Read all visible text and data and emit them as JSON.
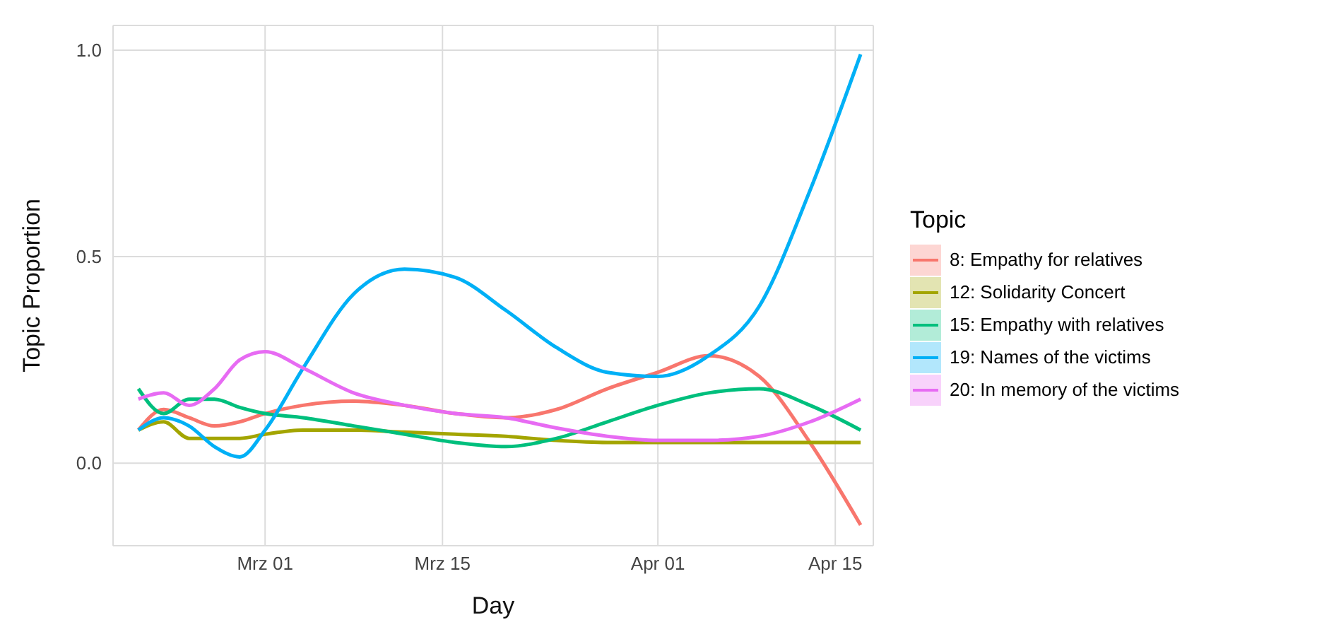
{
  "chart_data": {
    "type": "line",
    "xlabel": "Day",
    "ylabel": "Topic Proportion",
    "legend_title": "Topic",
    "legend": "right",
    "grid": true,
    "x": [
      "--02-19",
      "--02-21",
      "--02-23",
      "--02-25",
      "--02-27",
      "--03-01",
      "--03-04",
      "--03-08",
      "--03-12",
      "--03-16",
      "--03-20",
      "--03-24",
      "--03-28",
      "--04-01",
      "--04-05",
      "--04-09",
      "--04-13",
      "--04-17"
    ],
    "xlim": [
      "--02-17",
      "--04-18"
    ],
    "xticks": [
      {
        "value": "--03-01",
        "label": "Mrz 01"
      },
      {
        "value": "--03-15",
        "label": "Mrz 15"
      },
      {
        "value": "--04-01",
        "label": "Apr 01"
      },
      {
        "value": "--04-15",
        "label": "Apr 15"
      }
    ],
    "ylim": [
      -0.2,
      1.06
    ],
    "yticks": [
      {
        "value": 0,
        "label": "0.0"
      },
      0.5,
      {
        "value": 1,
        "label": "1.0"
      }
    ],
    "series": [
      {
        "name": "8: Empathy for relatives",
        "color": "#f8766d",
        "values": [
          0.08,
          0.13,
          0.11,
          0.09,
          0.1,
          0.12,
          0.14,
          0.15,
          0.14,
          0.12,
          0.11,
          0.13,
          0.18,
          0.22,
          0.26,
          0.21,
          0.05,
          -0.15
        ]
      },
      {
        "name": "12: Solidarity Concert",
        "color": "#a3a500",
        "values": [
          0.08,
          0.1,
          0.06,
          0.06,
          0.06,
          0.07,
          0.08,
          0.08,
          0.075,
          0.07,
          0.065,
          0.055,
          0.05,
          0.05,
          0.05,
          0.05,
          0.05,
          0.05
        ]
      },
      {
        "name": "15: Empathy with relatives",
        "color": "#00bf7d",
        "values": [
          0.18,
          0.12,
          0.155,
          0.155,
          0.135,
          0.12,
          0.11,
          0.09,
          0.07,
          0.05,
          0.04,
          0.06,
          0.1,
          0.14,
          0.17,
          0.18,
          0.14,
          0.08
        ]
      },
      {
        "name": "19: Names of the victims",
        "color": "#00b0f6",
        "values": [
          0.08,
          0.11,
          0.09,
          0.04,
          0.015,
          0.08,
          0.23,
          0.41,
          0.47,
          0.45,
          0.37,
          0.28,
          0.22,
          0.21,
          0.26,
          0.38,
          0.66,
          0.99
        ]
      },
      {
        "name": "20: In memory of the victims",
        "color": "#e76bf3",
        "values": [
          0.155,
          0.17,
          0.14,
          0.18,
          0.25,
          0.27,
          0.23,
          0.17,
          0.14,
          0.12,
          0.11,
          0.085,
          0.065,
          0.055,
          0.055,
          0.065,
          0.1,
          0.155
        ]
      }
    ]
  }
}
